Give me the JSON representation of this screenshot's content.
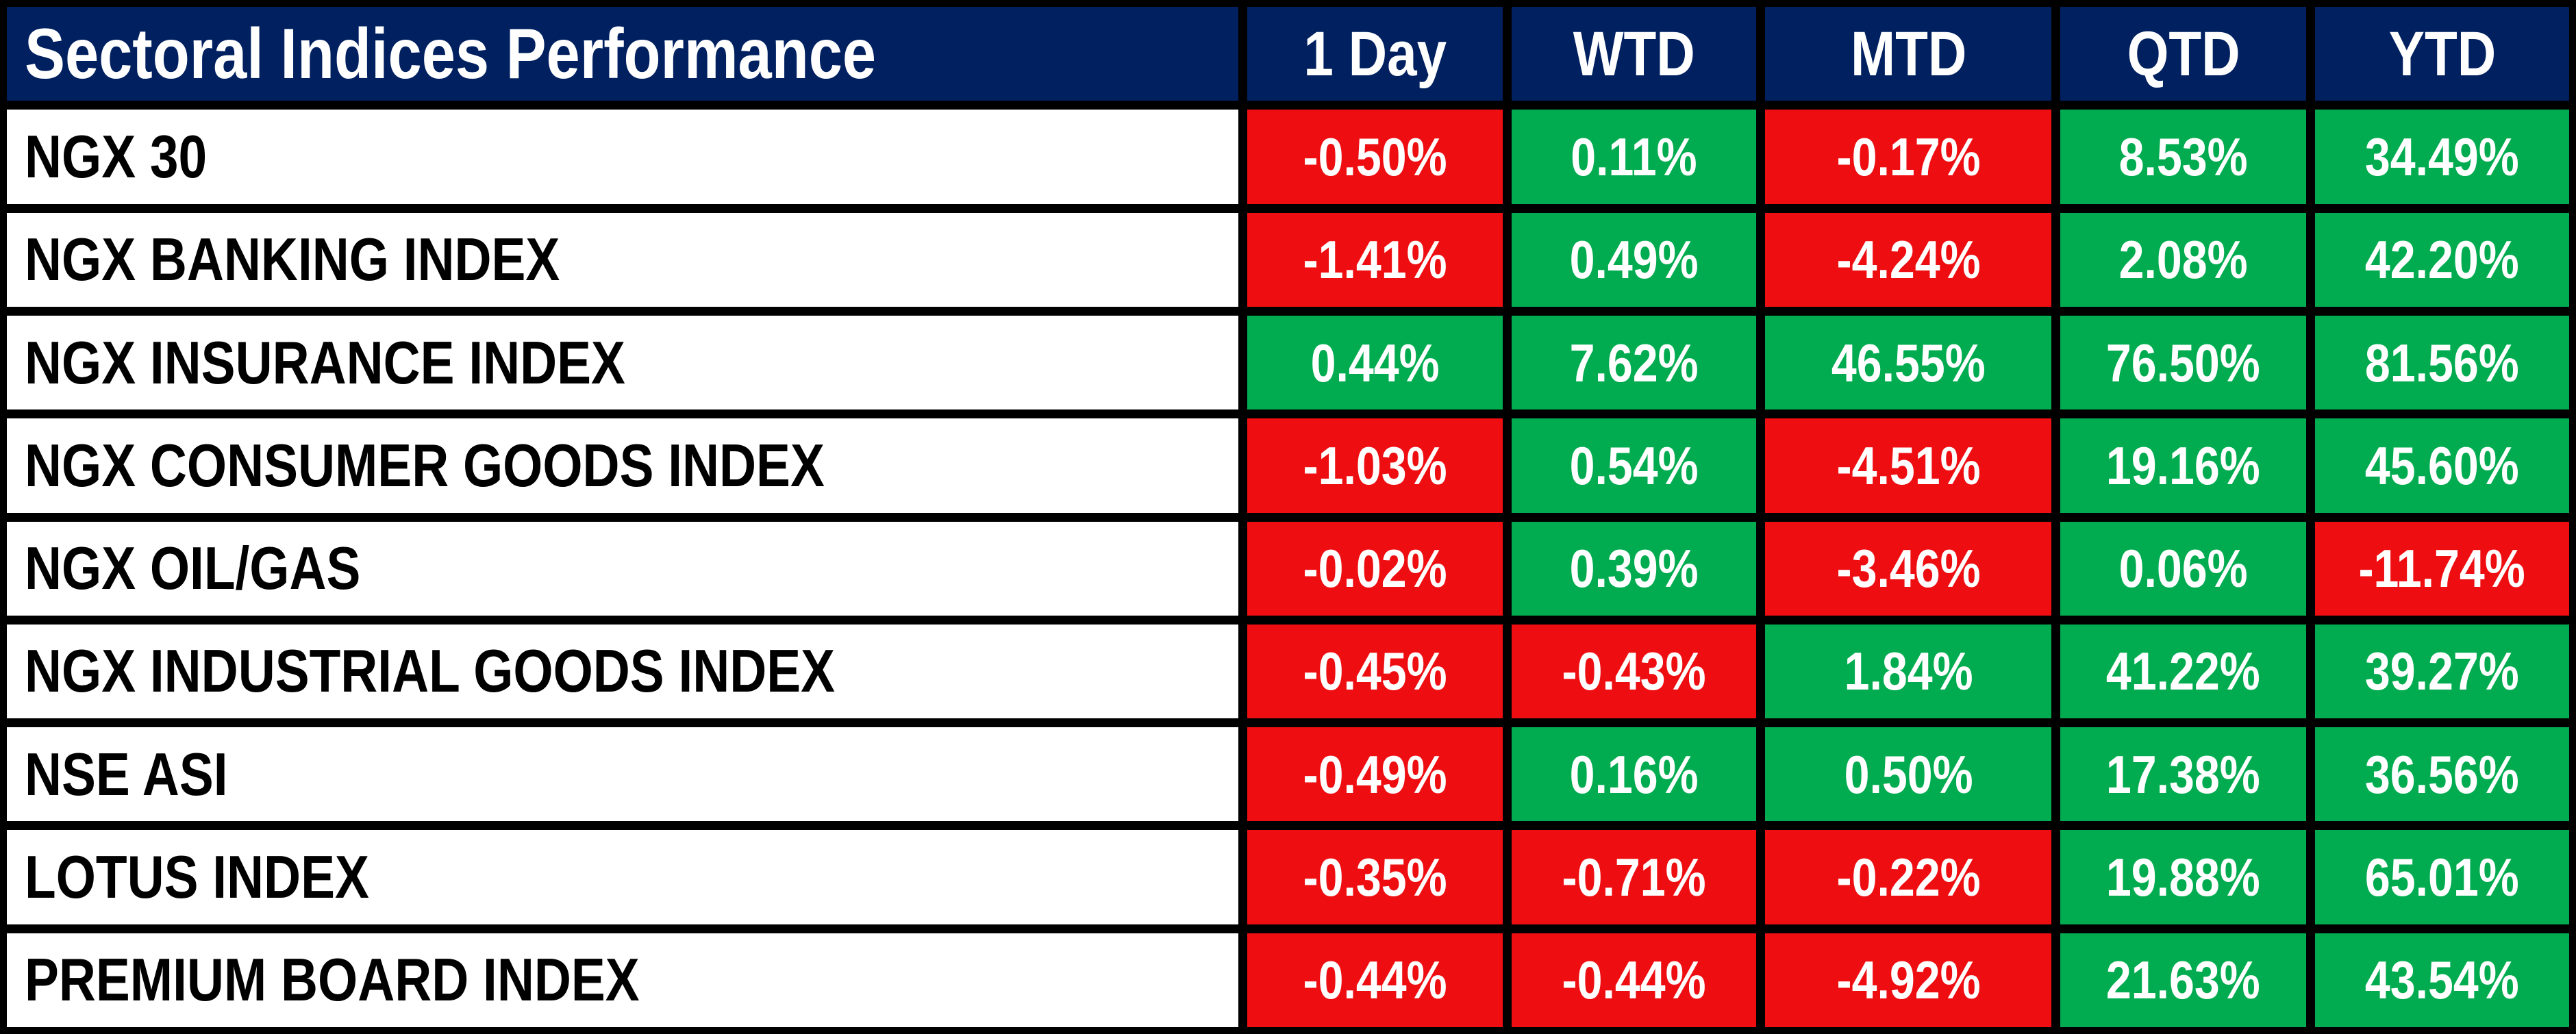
{
  "table": {
    "title": "Sectoral Indices Performance",
    "columns": [
      "1 Day",
      "WTD",
      "MTD",
      "QTD",
      "YTD"
    ],
    "rows": [
      {
        "label": "NGX 30",
        "values": [
          "-0.50%",
          "0.11%",
          "-0.17%",
          "8.53%",
          "34.49%"
        ]
      },
      {
        "label": "NGX BANKING INDEX",
        "values": [
          "-1.41%",
          "0.49%",
          "-4.24%",
          "2.08%",
          "42.20%"
        ]
      },
      {
        "label": "NGX INSURANCE INDEX",
        "values": [
          "0.44%",
          "7.62%",
          "46.55%",
          "76.50%",
          "81.56%"
        ]
      },
      {
        "label": "NGX CONSUMER GOODS INDEX",
        "values": [
          "-1.03%",
          "0.54%",
          "-4.51%",
          "19.16%",
          "45.60%"
        ]
      },
      {
        "label": "NGX OIL/GAS",
        "values": [
          "-0.02%",
          "0.39%",
          "-3.46%",
          "0.06%",
          "-11.74%"
        ]
      },
      {
        "label": "NGX INDUSTRIAL GOODS INDEX",
        "values": [
          "-0.45%",
          "-0.43%",
          "1.84%",
          "41.22%",
          "39.27%"
        ]
      },
      {
        "label": "NSE ASI",
        "values": [
          "-0.49%",
          "0.16%",
          "0.50%",
          "17.38%",
          "36.56%"
        ]
      },
      {
        "label": "LOTUS INDEX",
        "values": [
          "-0.35%",
          "-0.71%",
          "-0.22%",
          "19.88%",
          "65.01%"
        ]
      },
      {
        "label": "PREMIUM BOARD INDEX",
        "values": [
          "-0.44%",
          "-0.44%",
          "-4.92%",
          "21.63%",
          "43.54%"
        ]
      }
    ]
  },
  "colors": {
    "header-bg": "#002060",
    "positive-bg": "#00AC4F",
    "negative-bg": "#EE0E12",
    "grid-border": "#000000",
    "label-bg": "#FFFFFF",
    "label-text": "#000000",
    "value-text": "#FFFFFF"
  },
  "chart_data": {
    "type": "table",
    "title": "Sectoral Indices Performance",
    "columns": [
      "1 Day",
      "WTD",
      "MTD",
      "QTD",
      "YTD"
    ],
    "row_labels": [
      "NGX 30",
      "NGX BANKING INDEX",
      "NGX INSURANCE INDEX",
      "NGX CONSUMER GOODS INDEX",
      "NGX OIL/GAS",
      "NGX INDUSTRIAL GOODS INDEX",
      "NSE ASI",
      "LOTUS INDEX",
      "PREMIUM BOARD INDEX"
    ],
    "values_percent": [
      [
        -0.5,
        0.11,
        -0.17,
        8.53,
        34.49
      ],
      [
        -1.41,
        0.49,
        -4.24,
        2.08,
        42.2
      ],
      [
        0.44,
        7.62,
        46.55,
        76.5,
        81.56
      ],
      [
        -1.03,
        0.54,
        -4.51,
        19.16,
        45.6
      ],
      [
        -0.02,
        0.39,
        -3.46,
        0.06,
        -11.74
      ],
      [
        -0.45,
        -0.43,
        1.84,
        41.22,
        39.27
      ],
      [
        -0.49,
        0.16,
        0.5,
        17.38,
        36.56
      ],
      [
        -0.35,
        -0.71,
        -0.22,
        19.88,
        65.01
      ],
      [
        -0.44,
        -0.44,
        -4.92,
        21.63,
        43.54
      ]
    ],
    "color_coding": "cell background green when value is positive, red when value is negative",
    "layout": "header row navy with white text; first column white with black text; thick black gridlines"
  }
}
